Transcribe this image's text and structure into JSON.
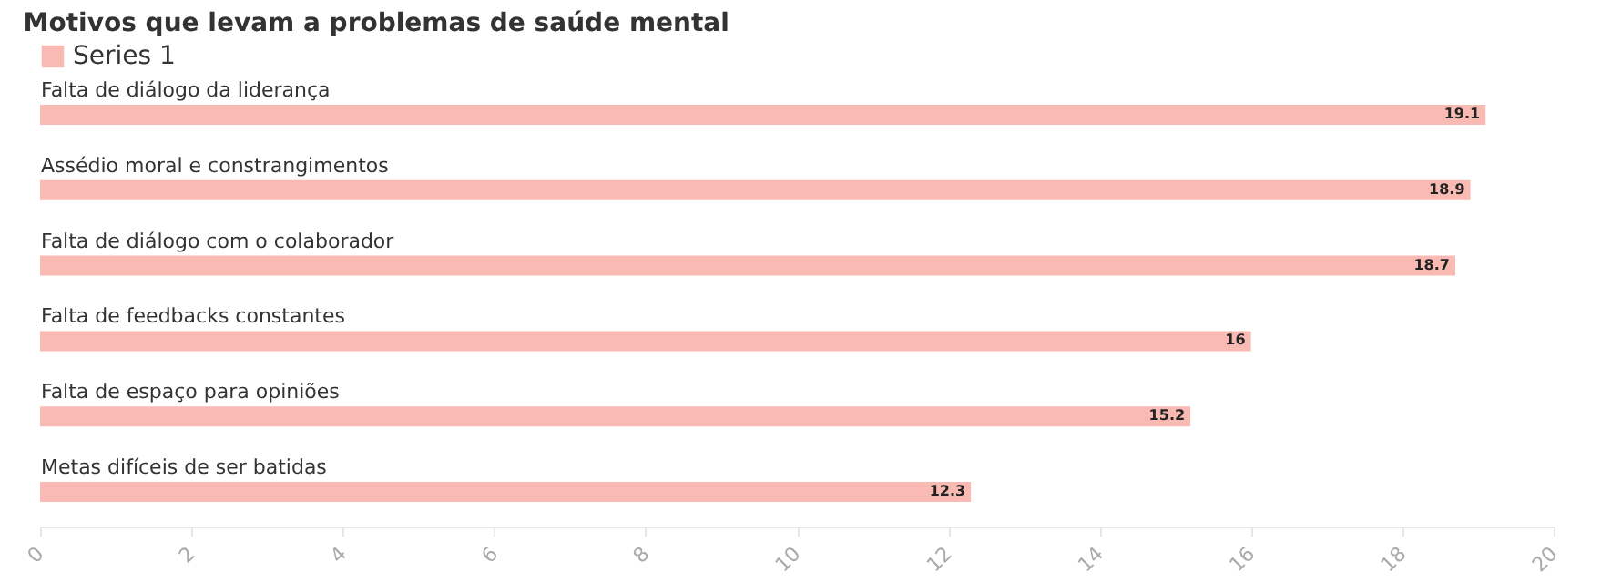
{
  "chart_data": {
    "type": "bar",
    "orientation": "horizontal",
    "title": "Motivos que levam a problemas de saúde mental",
    "categories": [
      "Falta de diálogo da liderança",
      "Assédio moral e constrangimentos",
      "Falta de diálogo com o colaborador",
      "Falta de feedbacks constantes",
      "Falta de espaço para opiniões",
      "Metas difíceis de ser batidas"
    ],
    "series": [
      {
        "name": "Series 1",
        "color": "#f8bab3",
        "values": [
          19.1,
          18.9,
          18.7,
          16,
          15.2,
          12.3
        ]
      }
    ],
    "xlim": [
      0,
      20
    ],
    "xticks": [
      0,
      2,
      4,
      6,
      8,
      10,
      12,
      14,
      16,
      18,
      20
    ],
    "data_labels": true,
    "legend": "top left",
    "grid": false
  }
}
